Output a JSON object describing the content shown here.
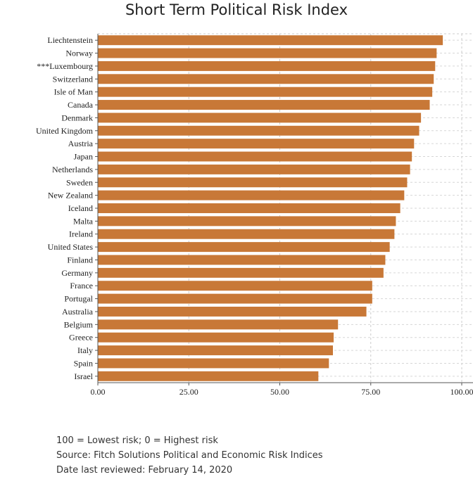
{
  "chart_data": {
    "type": "bar",
    "orientation": "horizontal",
    "title": "Short Term Political Risk Index",
    "xlabel": "",
    "ylabel": "",
    "xlim": [
      0,
      100
    ],
    "xticks": [
      "0.00",
      "25.00",
      "50.00",
      "75.00",
      "100.00"
    ],
    "xtick_values": [
      0,
      25,
      50,
      75,
      100
    ],
    "grid": true,
    "legend": "none",
    "bar_color": "#C87837",
    "categories": [
      "Liechtenstein",
      "Norway",
      "***Luxembourg",
      "Switzerland",
      "Isle of Man",
      "Canada",
      "Denmark",
      "United Kingdom",
      "Austria",
      "Japan",
      "Netherlands",
      "Sweden",
      "New Zealand",
      "Iceland",
      "Malta",
      "Ireland",
      "United States",
      "Finland",
      "Germany",
      "France",
      "Portugal",
      "Australia",
      "Belgium",
      "Greece",
      "Italy",
      "Spain",
      "Israel"
    ],
    "values": [
      94.8,
      93.1,
      92.7,
      92.3,
      91.9,
      91.2,
      88.8,
      88.3,
      86.9,
      86.3,
      85.8,
      85.0,
      84.2,
      83.1,
      81.9,
      81.5,
      80.2,
      79.0,
      78.5,
      75.4,
      75.4,
      73.8,
      66.0,
      64.8,
      64.6,
      63.5,
      60.6
    ]
  },
  "notes": {
    "scale": "100 = Lowest risk; 0 = Highest risk",
    "source": "Source: Fitch Solutions Political and Economic Risk Indices",
    "reviewed": "Date last reviewed: February 14, 2020"
  }
}
